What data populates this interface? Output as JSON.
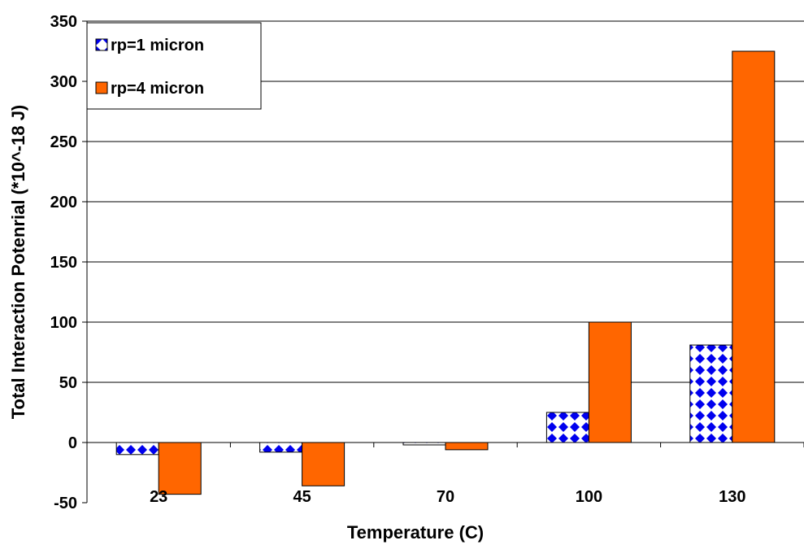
{
  "chart_data": {
    "type": "bar",
    "title": "",
    "xlabel": "Temperature (C)",
    "ylabel": "Total Interaction Potenrial (*10^-18 J)",
    "categories": [
      "23",
      "45",
      "70",
      "100",
      "130"
    ],
    "ylim": [
      -50,
      350
    ],
    "yticks": [
      350,
      300,
      250,
      200,
      150,
      100,
      50,
      0,
      -50
    ],
    "grid": true,
    "legend_position": "top-left",
    "series": [
      {
        "name": "rp=1 micron",
        "values": [
          -10,
          -8,
          -2,
          25,
          81
        ],
        "pattern": "blue diamonds on white",
        "color": "#0000ee"
      },
      {
        "name": "rp=4 micron",
        "values": [
          -43,
          -36,
          -6,
          100,
          325
        ],
        "color": "#ff6600"
      }
    ]
  }
}
